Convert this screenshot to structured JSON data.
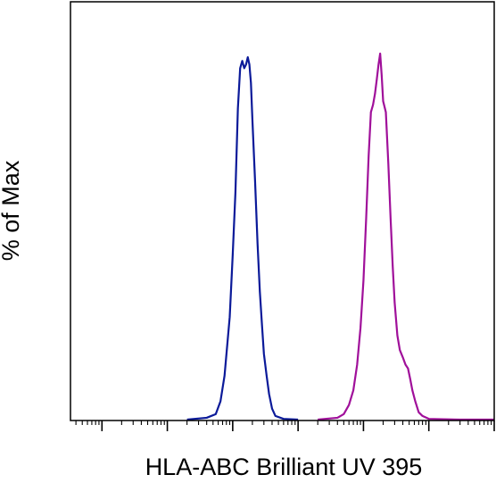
{
  "chart_data": {
    "type": "area",
    "title": "",
    "xlabel": "HLA-ABC Brilliant UV 395",
    "ylabel": "% of Max",
    "x_scale": "log",
    "xlim": [
      0.33,
      1000000
    ],
    "ylim": [
      0,
      100
    ],
    "grid": false,
    "legend": "none",
    "tick_labels": [],
    "series": [
      {
        "color": "#0b1a99",
        "points": [
          [
            20,
            0
          ],
          [
            40,
            0.5
          ],
          [
            55,
            1.5
          ],
          [
            65,
            5
          ],
          [
            75,
            12
          ],
          [
            90,
            28
          ],
          [
            100,
            45
          ],
          [
            110,
            62
          ],
          [
            120,
            85
          ],
          [
            130,
            96
          ],
          [
            140,
            98
          ],
          [
            150,
            96
          ],
          [
            160,
            97
          ],
          [
            170,
            99
          ],
          [
            180,
            97
          ],
          [
            190,
            92
          ],
          [
            200,
            82
          ],
          [
            220,
            65
          ],
          [
            240,
            48
          ],
          [
            260,
            35
          ],
          [
            280,
            26
          ],
          [
            300,
            18
          ],
          [
            330,
            12
          ],
          [
            360,
            7
          ],
          [
            400,
            3
          ],
          [
            450,
            1
          ],
          [
            600,
            0.2
          ],
          [
            1000,
            0
          ]
        ]
      },
      {
        "color": "#a0109a",
        "points": [
          [
            2000,
            0
          ],
          [
            4000,
            0.5
          ],
          [
            5000,
            1.5
          ],
          [
            6000,
            4
          ],
          [
            7000,
            8
          ],
          [
            8000,
            15
          ],
          [
            9000,
            25
          ],
          [
            10000,
            38
          ],
          [
            11000,
            55
          ],
          [
            12000,
            72
          ],
          [
            13000,
            84
          ],
          [
            14000,
            86
          ],
          [
            15000,
            89
          ],
          [
            16000,
            93
          ],
          [
            17000,
            97
          ],
          [
            18000,
            100
          ],
          [
            19000,
            94
          ],
          [
            20000,
            87
          ],
          [
            22000,
            84
          ],
          [
            24000,
            70
          ],
          [
            26000,
            55
          ],
          [
            28000,
            42
          ],
          [
            30000,
            32
          ],
          [
            33000,
            23
          ],
          [
            36000,
            19
          ],
          [
            40000,
            17
          ],
          [
            44000,
            15
          ],
          [
            48000,
            14
          ],
          [
            52000,
            11
          ],
          [
            56000,
            8
          ],
          [
            62000,
            5
          ],
          [
            70000,
            2
          ],
          [
            80000,
            1
          ],
          [
            100000,
            0.2
          ],
          [
            300000,
            0
          ],
          [
            1000000,
            0
          ]
        ]
      }
    ]
  }
}
